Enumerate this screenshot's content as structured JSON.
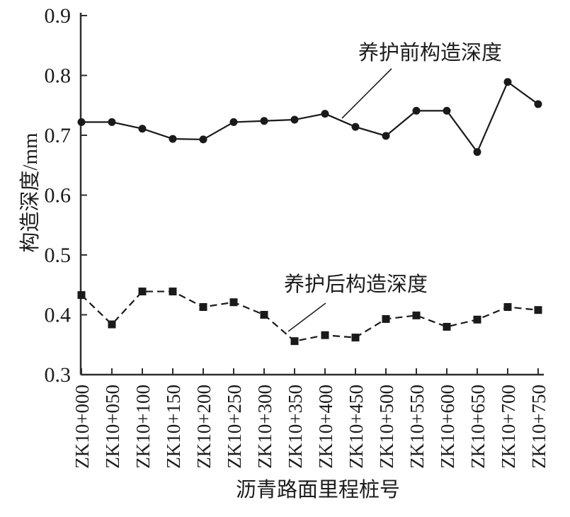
{
  "chart_data": {
    "type": "line",
    "title": "",
    "xlabel": "沥青路面里程桩号",
    "ylabel": "构造深度/mm",
    "ylim": [
      0.3,
      0.9
    ],
    "yticks": [
      0.3,
      0.4,
      0.5,
      0.6,
      0.7,
      0.8,
      0.9
    ],
    "grid": false,
    "legend_position": "none-inline-annotations",
    "categories": [
      "ZK10+000",
      "ZK10+050",
      "ZK10+100",
      "ZK10+150",
      "ZK10+200",
      "ZK10+250",
      "ZK10+300",
      "ZK10+350",
      "ZK10+400",
      "ZK10+450",
      "ZK10+500",
      "ZK10+550",
      "ZK10+600",
      "ZK10+650",
      "ZK10+700",
      "ZK10+750"
    ],
    "series": [
      {
        "name": "养护前构造深度",
        "marker": "circle",
        "line_style": "solid",
        "color": "#1a1a1a",
        "values": [
          0.722,
          0.722,
          0.711,
          0.694,
          0.693,
          0.722,
          0.724,
          0.726,
          0.736,
          0.714,
          0.699,
          0.741,
          0.741,
          0.672,
          0.789,
          0.752
        ]
      },
      {
        "name": "养护后构造深度",
        "marker": "square",
        "line_style": "dashed",
        "color": "#1a1a1a",
        "values": [
          0.433,
          0.384,
          0.439,
          0.439,
          0.413,
          0.421,
          0.4,
          0.356,
          0.366,
          0.362,
          0.393,
          0.399,
          0.38,
          0.392,
          0.413,
          0.408
        ]
      }
    ],
    "annotations": [
      {
        "text": "养护前构造深度",
        "points_to": "solid series between ZK10+400 and ZK10+450"
      },
      {
        "text": "养护后构造深度",
        "points_to": "dashed series near ZK10+350"
      }
    ]
  },
  "colors": {
    "axis": "#2e2e2e",
    "line": "#141414",
    "background": "#ffffff"
  }
}
